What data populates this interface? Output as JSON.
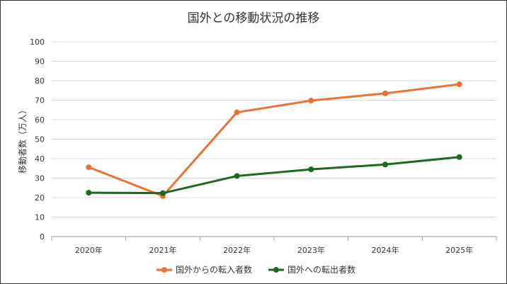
{
  "chart_data": {
    "type": "line",
    "title": "国外との移動状況の推移",
    "xlabel": "",
    "ylabel": "移動者数（万人）",
    "categories": [
      "2020年",
      "2021年",
      "2022年",
      "2023年",
      "2024年",
      "2025年"
    ],
    "ylim": [
      0,
      100
    ],
    "yticks": [
      0,
      10,
      20,
      30,
      40,
      50,
      60,
      70,
      80,
      90,
      100
    ],
    "grid": true,
    "legend_position": "bottom",
    "series": [
      {
        "name": "国外からの転入者数",
        "color": "#ED7232",
        "values": [
          35.6,
          20.8,
          63.8,
          69.8,
          73.5,
          78.2
        ]
      },
      {
        "name": "国外への転出者数",
        "color": "#1B6B1E",
        "values": [
          22.5,
          22.3,
          31.1,
          34.5,
          37.0,
          40.8
        ]
      }
    ]
  }
}
